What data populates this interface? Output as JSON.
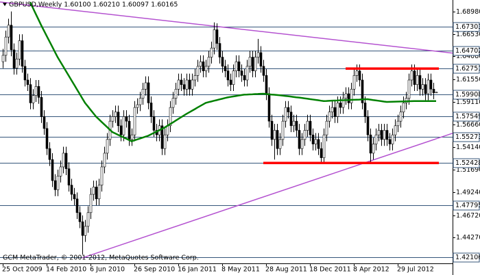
{
  "chart_data": {
    "type": "candlestick",
    "title": "GBPUSD,Weekly  1.60100 1.60210 1.60097 1.60165",
    "footer": "GCM MetaTrader, © 2001-2012, MetaQuotes Software Corp.",
    "categories": [
      "25 Oct 2009",
      null,
      null,
      null,
      null,
      null,
      null,
      null,
      null,
      null,
      null,
      null,
      null,
      null,
      null,
      null,
      "14 Feb 2010",
      null,
      null,
      null,
      null,
      null,
      null,
      null,
      null,
      null,
      null,
      null,
      null,
      null,
      null,
      null,
      "6 Jun 2010",
      null,
      null,
      null,
      null,
      null,
      null,
      null,
      null,
      null,
      null,
      null,
      null,
      null,
      null,
      null,
      "26 Sep 2010",
      null,
      null,
      null,
      null,
      null,
      null,
      null,
      null,
      null,
      null,
      null,
      null,
      null,
      null,
      null,
      "16 Jan 2011",
      null,
      null,
      null,
      null,
      null,
      null,
      null,
      null,
      null,
      null,
      null,
      null,
      null,
      null,
      null,
      "8 May 2011",
      null,
      null,
      null,
      null,
      null,
      null,
      null,
      null,
      null,
      null,
      null,
      null,
      null,
      null,
      null,
      "28 Aug 2011",
      null,
      null,
      null,
      null,
      null,
      null,
      null,
      null,
      null,
      null,
      null,
      null,
      null,
      null,
      null,
      "18 Dec 2011",
      null,
      null,
      null,
      null,
      null,
      null,
      null,
      null,
      null,
      null,
      null,
      null,
      null,
      null,
      null,
      "8 Apr 2012",
      null,
      null,
      null,
      null,
      null,
      null,
      null,
      null,
      null,
      null,
      null,
      null,
      null,
      null,
      null,
      "29 Jul 2012",
      null,
      null,
      null,
      null,
      null,
      null,
      null,
      null,
      null,
      null,
      null,
      null,
      null,
      null
    ],
    "open": [
      1.635,
      1.642,
      1.662,
      1.675,
      1.648,
      1.628,
      1.638,
      1.658,
      1.63,
      1.615,
      1.61,
      1.59,
      1.598,
      1.608,
      1.596,
      1.575,
      1.562,
      1.54,
      1.528,
      1.505,
      1.495,
      1.51,
      1.52,
      1.535,
      1.518,
      1.5,
      1.49,
      1.485,
      1.47,
      1.46,
      1.445,
      1.455,
      1.47,
      1.49,
      1.498,
      1.485,
      1.5,
      1.52,
      1.535,
      1.55,
      1.57,
      1.575,
      1.58,
      1.565,
      1.555,
      1.575,
      1.57,
      1.55,
      1.555,
      1.585,
      1.588,
      1.595,
      1.605,
      1.612,
      1.59,
      1.575,
      1.56,
      1.555,
      1.565,
      1.54,
      1.555,
      1.565,
      1.585,
      1.595,
      1.605,
      1.615,
      1.61,
      1.605,
      1.615,
      1.605,
      1.615,
      1.62,
      1.63,
      1.635,
      1.625,
      1.63,
      1.64,
      1.65,
      1.67,
      1.655,
      1.64,
      1.63,
      1.625,
      1.615,
      1.61,
      1.625,
      1.635,
      1.625,
      1.62,
      1.615,
      1.63,
      1.64,
      1.625,
      1.64,
      1.645,
      1.63,
      1.62,
      1.6,
      1.57,
      1.55,
      1.56,
      1.54,
      1.55,
      1.57,
      1.585,
      1.58,
      1.565,
      1.57,
      1.56,
      1.54,
      1.55,
      1.56,
      1.57,
      1.555,
      1.545,
      1.55,
      1.54,
      1.53,
      1.555,
      1.57,
      1.58,
      1.585,
      1.575,
      1.59,
      1.585,
      1.595,
      1.6,
      1.59,
      1.605,
      1.62,
      1.625,
      1.615,
      1.59,
      1.575,
      1.555,
      1.535,
      1.545,
      1.555,
      1.56,
      1.55,
      1.56,
      1.55,
      1.545,
      1.555,
      1.565,
      1.57,
      1.58,
      1.59,
      1.595,
      1.615,
      1.625,
      1.61,
      1.62,
      1.605,
      1.61,
      1.6,
      1.615,
      1.605,
      1.601
    ],
    "high": [
      1.649,
      1.669,
      1.682,
      1.69,
      1.655,
      1.645,
      1.665,
      1.665,
      1.637,
      1.622,
      1.617,
      1.605,
      1.615,
      1.615,
      1.603,
      1.582,
      1.569,
      1.547,
      1.535,
      1.512,
      1.517,
      1.527,
      1.542,
      1.542,
      1.525,
      1.507,
      1.497,
      1.492,
      1.477,
      1.467,
      1.462,
      1.477,
      1.497,
      1.505,
      1.505,
      1.507,
      1.527,
      1.542,
      1.557,
      1.577,
      1.582,
      1.587,
      1.587,
      1.572,
      1.582,
      1.582,
      1.577,
      1.562,
      1.592,
      1.595,
      1.602,
      1.612,
      1.619,
      1.619,
      1.597,
      1.582,
      1.567,
      1.572,
      1.572,
      1.562,
      1.572,
      1.592,
      1.602,
      1.612,
      1.622,
      1.622,
      1.617,
      1.622,
      1.622,
      1.622,
      1.627,
      1.637,
      1.642,
      1.642,
      1.637,
      1.647,
      1.657,
      1.678,
      1.677,
      1.662,
      1.647,
      1.637,
      1.632,
      1.622,
      1.632,
      1.642,
      1.642,
      1.632,
      1.627,
      1.637,
      1.647,
      1.647,
      1.647,
      1.66,
      1.652,
      1.637,
      1.627,
      1.607,
      1.577,
      1.567,
      1.567,
      1.557,
      1.577,
      1.592,
      1.592,
      1.587,
      1.577,
      1.577,
      1.567,
      1.557,
      1.567,
      1.577,
      1.577,
      1.562,
      1.557,
      1.557,
      1.547,
      1.562,
      1.577,
      1.587,
      1.592,
      1.592,
      1.597,
      1.597,
      1.602,
      1.607,
      1.607,
      1.612,
      1.627,
      1.632,
      1.632,
      1.622,
      1.597,
      1.582,
      1.562,
      1.552,
      1.562,
      1.567,
      1.567,
      1.567,
      1.567,
      1.557,
      1.562,
      1.572,
      1.577,
      1.587,
      1.597,
      1.602,
      1.622,
      1.632,
      1.632,
      1.627,
      1.627,
      1.617,
      1.617,
      1.622,
      1.622,
      1.612,
      1.6021
    ],
    "low": [
      1.628,
      1.635,
      1.655,
      1.641,
      1.621,
      1.621,
      1.631,
      1.623,
      1.608,
      1.603,
      1.583,
      1.583,
      1.591,
      1.589,
      1.568,
      1.555,
      1.533,
      1.521,
      1.498,
      1.488,
      1.488,
      1.503,
      1.513,
      1.511,
      1.493,
      1.483,
      1.478,
      1.463,
      1.453,
      1.424,
      1.438,
      1.448,
      1.463,
      1.483,
      1.478,
      1.478,
      1.493,
      1.513,
      1.528,
      1.543,
      1.563,
      1.568,
      1.558,
      1.548,
      1.548,
      1.563,
      1.543,
      1.543,
      1.548,
      1.578,
      1.581,
      1.588,
      1.598,
      1.583,
      1.568,
      1.553,
      1.548,
      1.548,
      1.533,
      1.533,
      1.548,
      1.558,
      1.578,
      1.588,
      1.598,
      1.603,
      1.598,
      1.598,
      1.598,
      1.598,
      1.608,
      1.613,
      1.623,
      1.618,
      1.618,
      1.623,
      1.633,
      1.643,
      1.648,
      1.633,
      1.623,
      1.618,
      1.608,
      1.603,
      1.603,
      1.618,
      1.618,
      1.613,
      1.608,
      1.608,
      1.623,
      1.618,
      1.618,
      1.633,
      1.623,
      1.613,
      1.593,
      1.563,
      1.543,
      1.528,
      1.533,
      1.533,
      1.543,
      1.563,
      1.573,
      1.558,
      1.558,
      1.553,
      1.533,
      1.533,
      1.543,
      1.553,
      1.548,
      1.538,
      1.538,
      1.533,
      1.523,
      1.523,
      1.548,
      1.563,
      1.573,
      1.568,
      1.568,
      1.578,
      1.578,
      1.588,
      1.583,
      1.583,
      1.598,
      1.613,
      1.608,
      1.583,
      1.568,
      1.548,
      1.525,
      1.528,
      1.538,
      1.548,
      1.543,
      1.543,
      1.543,
      1.538,
      1.538,
      1.548,
      1.558,
      1.563,
      1.573,
      1.583,
      1.588,
      1.608,
      1.603,
      1.603,
      1.598,
      1.598,
      1.593,
      1.593,
      1.598,
      1.594,
      1.60097
    ],
    "close": [
      1.642,
      1.662,
      1.675,
      1.648,
      1.628,
      1.638,
      1.658,
      1.63,
      1.615,
      1.61,
      1.59,
      1.598,
      1.608,
      1.596,
      1.575,
      1.562,
      1.54,
      1.528,
      1.505,
      1.495,
      1.51,
      1.52,
      1.535,
      1.518,
      1.5,
      1.49,
      1.485,
      1.47,
      1.46,
      1.445,
      1.455,
      1.47,
      1.49,
      1.498,
      1.485,
      1.5,
      1.52,
      1.535,
      1.55,
      1.57,
      1.575,
      1.58,
      1.565,
      1.555,
      1.575,
      1.57,
      1.55,
      1.555,
      1.585,
      1.588,
      1.595,
      1.605,
      1.612,
      1.59,
      1.575,
      1.56,
      1.555,
      1.565,
      1.54,
      1.555,
      1.565,
      1.585,
      1.595,
      1.605,
      1.615,
      1.61,
      1.605,
      1.615,
      1.605,
      1.615,
      1.62,
      1.63,
      1.635,
      1.625,
      1.63,
      1.64,
      1.65,
      1.67,
      1.655,
      1.64,
      1.63,
      1.625,
      1.615,
      1.61,
      1.625,
      1.635,
      1.625,
      1.62,
      1.615,
      1.63,
      1.64,
      1.625,
      1.64,
      1.645,
      1.63,
      1.62,
      1.6,
      1.57,
      1.55,
      1.56,
      1.54,
      1.55,
      1.57,
      1.585,
      1.58,
      1.565,
      1.57,
      1.56,
      1.54,
      1.55,
      1.56,
      1.57,
      1.555,
      1.545,
      1.55,
      1.54,
      1.53,
      1.555,
      1.57,
      1.58,
      1.585,
      1.575,
      1.59,
      1.585,
      1.595,
      1.6,
      1.59,
      1.605,
      1.62,
      1.625,
      1.615,
      1.59,
      1.575,
      1.555,
      1.535,
      1.545,
      1.555,
      1.56,
      1.55,
      1.56,
      1.55,
      1.545,
      1.555,
      1.565,
      1.57,
      1.58,
      1.59,
      1.595,
      1.615,
      1.625,
      1.61,
      1.62,
      1.605,
      1.61,
      1.6,
      1.615,
      1.605,
      1.601,
      1.60165
    ],
    "up_color": "#ffffff",
    "down_color": "#000000",
    "ylim": [
      1.4145,
      1.7025
    ],
    "yticks": [
      {
        "value": 1.6898,
        "label": "1.68980"
      },
      {
        "value": 1.6653,
        "label": "1.66530"
      },
      {
        "value": 1.6408,
        "label": "1.64080"
      },
      {
        "value": 1.6155,
        "label": "1.61550"
      },
      {
        "value": 1.5911,
        "label": "1.59110"
      },
      {
        "value": 1.5666,
        "label": "1.56660"
      },
      {
        "value": 1.5414,
        "label": "1.54140"
      },
      {
        "value": 1.5169,
        "label": "1.51690"
      },
      {
        "value": 1.4924,
        "label": "1.49240"
      },
      {
        "value": 1.4672,
        "label": "1.46720"
      },
      {
        "value": 1.4427,
        "label": "1.44270"
      }
    ],
    "grid": false,
    "levels": {
      "color": "#34557a",
      "values": [
        1.67303,
        1.64702,
        1.62751,
        1.59908,
        1.57549,
        1.55273,
        1.52428,
        1.47795,
        1.42106
      ]
    },
    "ma": {
      "color": "#008000",
      "values": [
        null,
        null,
        null,
        null,
        null,
        null,
        null,
        null,
        null,
        null,
        1.7,
        1.6938,
        1.6875,
        1.6813,
        1.675,
        1.6692,
        1.6633,
        1.6575,
        1.6517,
        1.6458,
        1.64,
        1.635,
        1.63,
        1.625,
        1.62,
        1.615,
        1.61,
        1.605,
        1.6,
        1.595,
        1.59,
        1.5863,
        1.5825,
        1.5788,
        1.575,
        1.5722,
        1.5693,
        1.5665,
        1.5637,
        1.5608,
        1.558,
        1.5566,
        1.5551,
        1.5537,
        1.5523,
        1.5509,
        1.5494,
        1.548,
        1.549,
        1.55,
        1.551,
        1.552,
        1.553,
        1.554,
        1.5555,
        1.557,
        1.5585,
        1.56,
        1.5615,
        1.563,
        1.5649,
        1.5668,
        1.5686,
        1.5705,
        1.5724,
        1.5743,
        1.5761,
        1.578,
        1.5797,
        1.5814,
        1.5831,
        1.5849,
        1.5866,
        1.5883,
        1.59,
        1.5908,
        1.5915,
        1.5923,
        1.593,
        1.5938,
        1.5945,
        1.5953,
        1.596,
        1.5965,
        1.597,
        1.5975,
        1.598,
        1.5985,
        1.599,
        1.5991,
        1.5993,
        1.5994,
        1.5996,
        1.5997,
        1.5999,
        1.6,
        1.5997,
        1.5994,
        1.5991,
        1.5989,
        1.5986,
        1.5983,
        1.598,
        1.5976,
        1.5973,
        1.5969,
        1.5965,
        1.5961,
        1.5958,
        1.5954,
        1.595,
        1.5946,
        1.5941,
        1.5937,
        1.5933,
        1.5929,
        1.5924,
        1.592,
        1.5921,
        1.5923,
        1.5924,
        1.5925,
        1.5926,
        1.5928,
        1.5929,
        1.593,
        1.5931,
        1.5933,
        1.5934,
        1.5935,
        1.5936,
        1.5938,
        1.5939,
        1.594,
        1.5936,
        1.5931,
        1.5927,
        1.5923,
        1.5919,
        1.5914,
        1.591,
        1.5911,
        1.5912,
        1.5913,
        1.5914,
        1.5915,
        1.5916,
        1.5917,
        1.5918,
        1.5919,
        1.592,
        1.592,
        1.592,
        1.592,
        1.592,
        1.592,
        1.592,
        1.592,
        1.592
      ]
    },
    "trendlines": [
      {
        "color": "#b452d0",
        "from": [
          0,
          1.7
        ],
        "to": [
          158,
          1.6465
        ]
      },
      {
        "color": "#b452d0",
        "from": [
          29,
          1.4205
        ],
        "to": [
          158,
          1.5507
        ]
      }
    ],
    "zones": [
      {
        "color": "#ff0000",
        "from": [
          125,
          1.6275
        ],
        "to": [
          159,
          1.6275
        ]
      },
      {
        "color": "#ff0000",
        "from": [
          95,
          1.5243
        ],
        "to": [
          159,
          1.5243
        ]
      }
    ]
  }
}
